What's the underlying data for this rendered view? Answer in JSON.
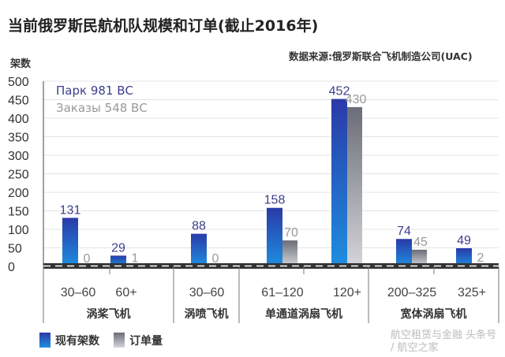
{
  "chart_data": {
    "type": "bar",
    "title": "当前俄罗斯民航机队规模和订单(截止2016年)",
    "source": "数据来源:俄罗斯联合飞机制造公司(UAC)",
    "ylabel": "架数",
    "ylim": [
      0,
      500
    ],
    "yticks": [
      0,
      50,
      100,
      150,
      200,
      250,
      300,
      350,
      400,
      450,
      500
    ],
    "grid": true,
    "annotations": [
      "Парк 981 ВС",
      "Заказы 548 ВС"
    ],
    "categories": [
      "30–60",
      "60+",
      "30–60",
      "61–120",
      "120+",
      "200–325",
      "325+"
    ],
    "groups": [
      {
        "label": "涡桨飞机",
        "span": 2
      },
      {
        "label": "涡喷飞机",
        "span": 1
      },
      {
        "label": "单通道涡扇飞机",
        "span": 2
      },
      {
        "label": "宽体涡扇飞机",
        "span": 2
      }
    ],
    "series": [
      {
        "name": "现有架数",
        "color": "#1f5fc8",
        "values": [
          131,
          29,
          88,
          158,
          452,
          74,
          49
        ]
      },
      {
        "name": "订单量",
        "color": "#8a8d96",
        "values": [
          0,
          1,
          0,
          70,
          430,
          45,
          2
        ]
      }
    ],
    "legend_position": "bottom-left"
  },
  "watermark": "航空租赁与金融 头条号 / 航空之家"
}
